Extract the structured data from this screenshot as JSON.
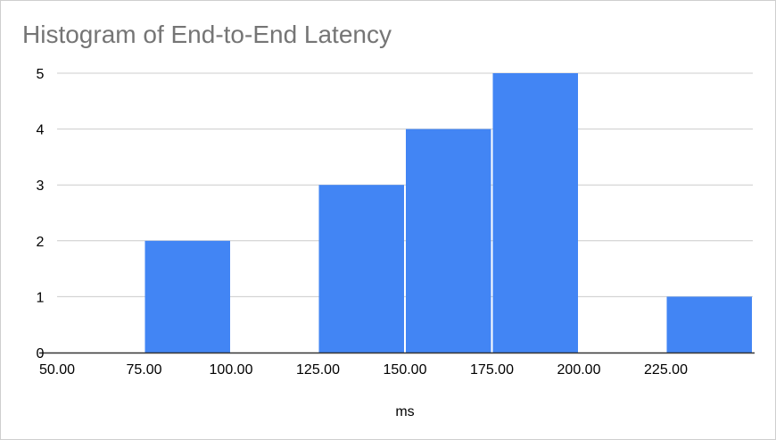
{
  "chart_data": {
    "type": "bar",
    "title": "Histogram of End-to-End Latency",
    "xlabel": "ms",
    "ylabel": "",
    "bin_width": 25,
    "xlim": [
      50,
      250
    ],
    "ylim": [
      0,
      5
    ],
    "x_ticks": [
      "50.00",
      "75.00",
      "100.00",
      "125.00",
      "150.00",
      "175.00",
      "200.00",
      "225.00"
    ],
    "y_ticks": [
      "0",
      "1",
      "2",
      "3",
      "4",
      "5"
    ],
    "bins": [
      {
        "start": 75,
        "end": 100,
        "count": 2
      },
      {
        "start": 125,
        "end": 150,
        "count": 3
      },
      {
        "start": 150,
        "end": 175,
        "count": 4
      },
      {
        "start": 175,
        "end": 200,
        "count": 5
      },
      {
        "start": 225,
        "end": 250,
        "count": 1
      }
    ],
    "bar_color": "#4285f4",
    "grid": true,
    "legend": "none"
  }
}
